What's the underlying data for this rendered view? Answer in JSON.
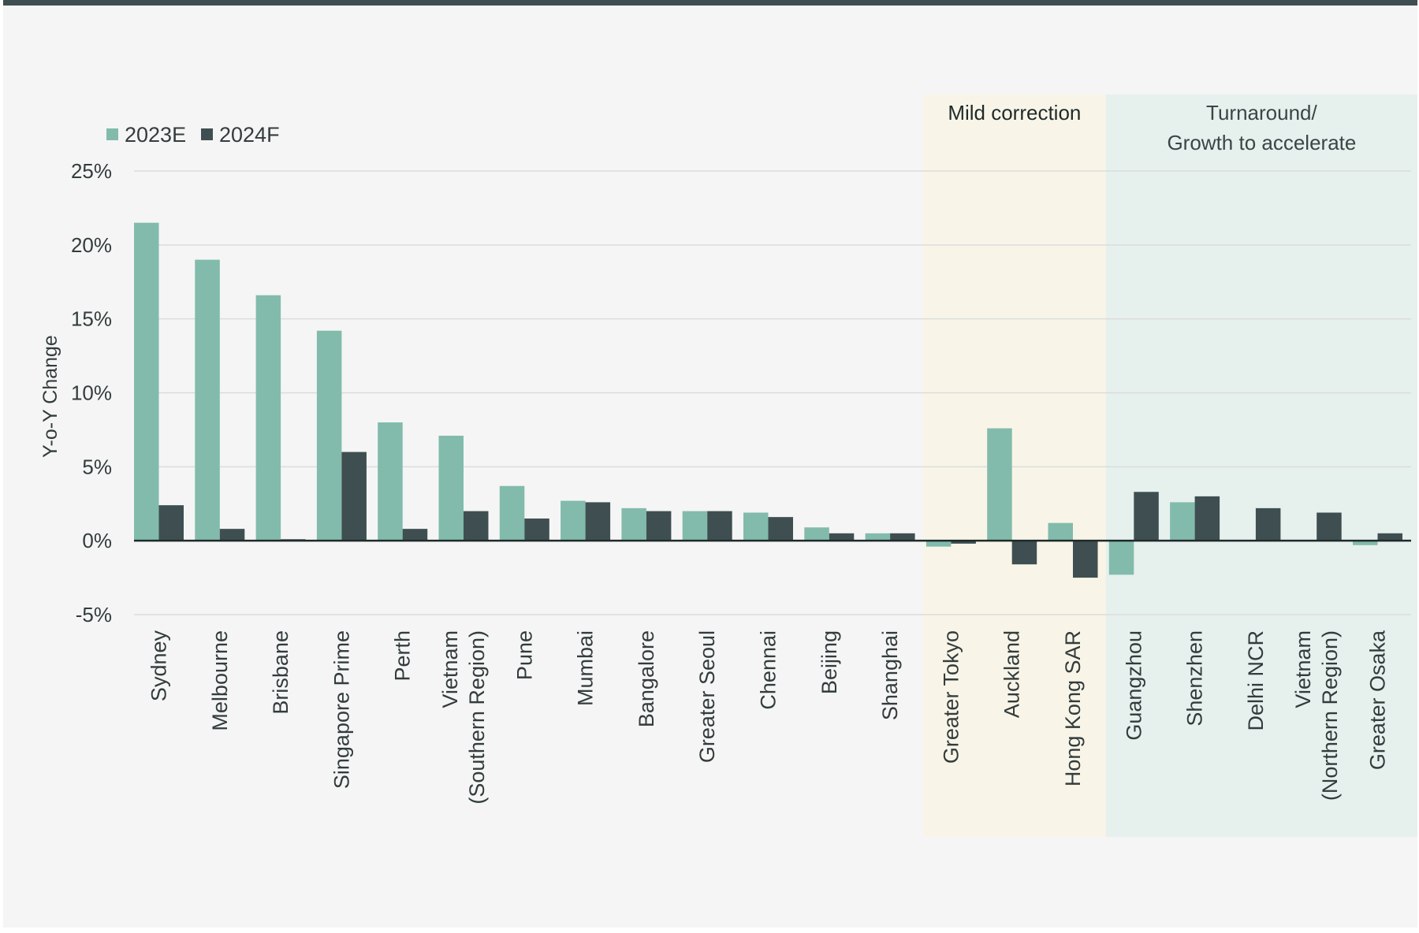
{
  "chart_data": {
    "type": "bar",
    "ylabel": "Y-o-Y Change",
    "ylim": [
      -5,
      25
    ],
    "yticks": [
      25,
      20,
      15,
      10,
      5,
      0,
      -5
    ],
    "ytick_labels": [
      "25%",
      "20%",
      "15%",
      "10%",
      "5%",
      "0%",
      "-5%"
    ],
    "grid": true,
    "legend_position": "top-left",
    "categories": [
      "Sydney",
      "Melbourne",
      "Brisbane",
      "Singapore Prime",
      "Perth",
      "Vietnam\n(Southern Region)",
      "Pune",
      "Mumbai",
      "Bangalore",
      "Greater Seoul",
      "Chennai",
      "Beijing",
      "Shanghai",
      "Greater Tokyo",
      "Auckland",
      "Hong Kong SAR",
      "Guangzhou",
      "Shenzhen",
      "Delhi NCR",
      "Vietnam\n(Northern Region)",
      "Greater Osaka"
    ],
    "series": [
      {
        "name": "2023E",
        "color": "#82bbab",
        "values": [
          21.5,
          19.0,
          16.6,
          14.2,
          8.0,
          7.1,
          3.7,
          2.7,
          2.2,
          2.0,
          1.9,
          0.9,
          0.5,
          -0.4,
          7.6,
          1.2,
          -2.3,
          2.6,
          0.0,
          0.0,
          -0.3
        ]
      },
      {
        "name": "2024F",
        "color": "#3f4f51",
        "values": [
          2.4,
          0.8,
          0.1,
          6.0,
          0.8,
          2.0,
          1.5,
          2.6,
          2.0,
          2.0,
          1.6,
          0.5,
          0.5,
          -0.2,
          -1.6,
          -2.5,
          3.3,
          3.0,
          2.2,
          1.9,
          0.5
        ]
      }
    ],
    "regions": [
      {
        "label": "Mild correction",
        "start": "Greater Tokyo",
        "end": "Hong Kong SAR",
        "color": "#f8f5e8"
      },
      {
        "label": "Turnaround/\nGrowth to accelerate",
        "start": "Guangzhou",
        "end": "Greater Osaka",
        "color": "#e6f0ed"
      }
    ]
  },
  "colors": {
    "background": "#f5f5f5",
    "top_rule": "#3f4f51",
    "grid": "#dcdcdc",
    "zero_line": "#1f2a2a",
    "text": "#333c3c"
  }
}
